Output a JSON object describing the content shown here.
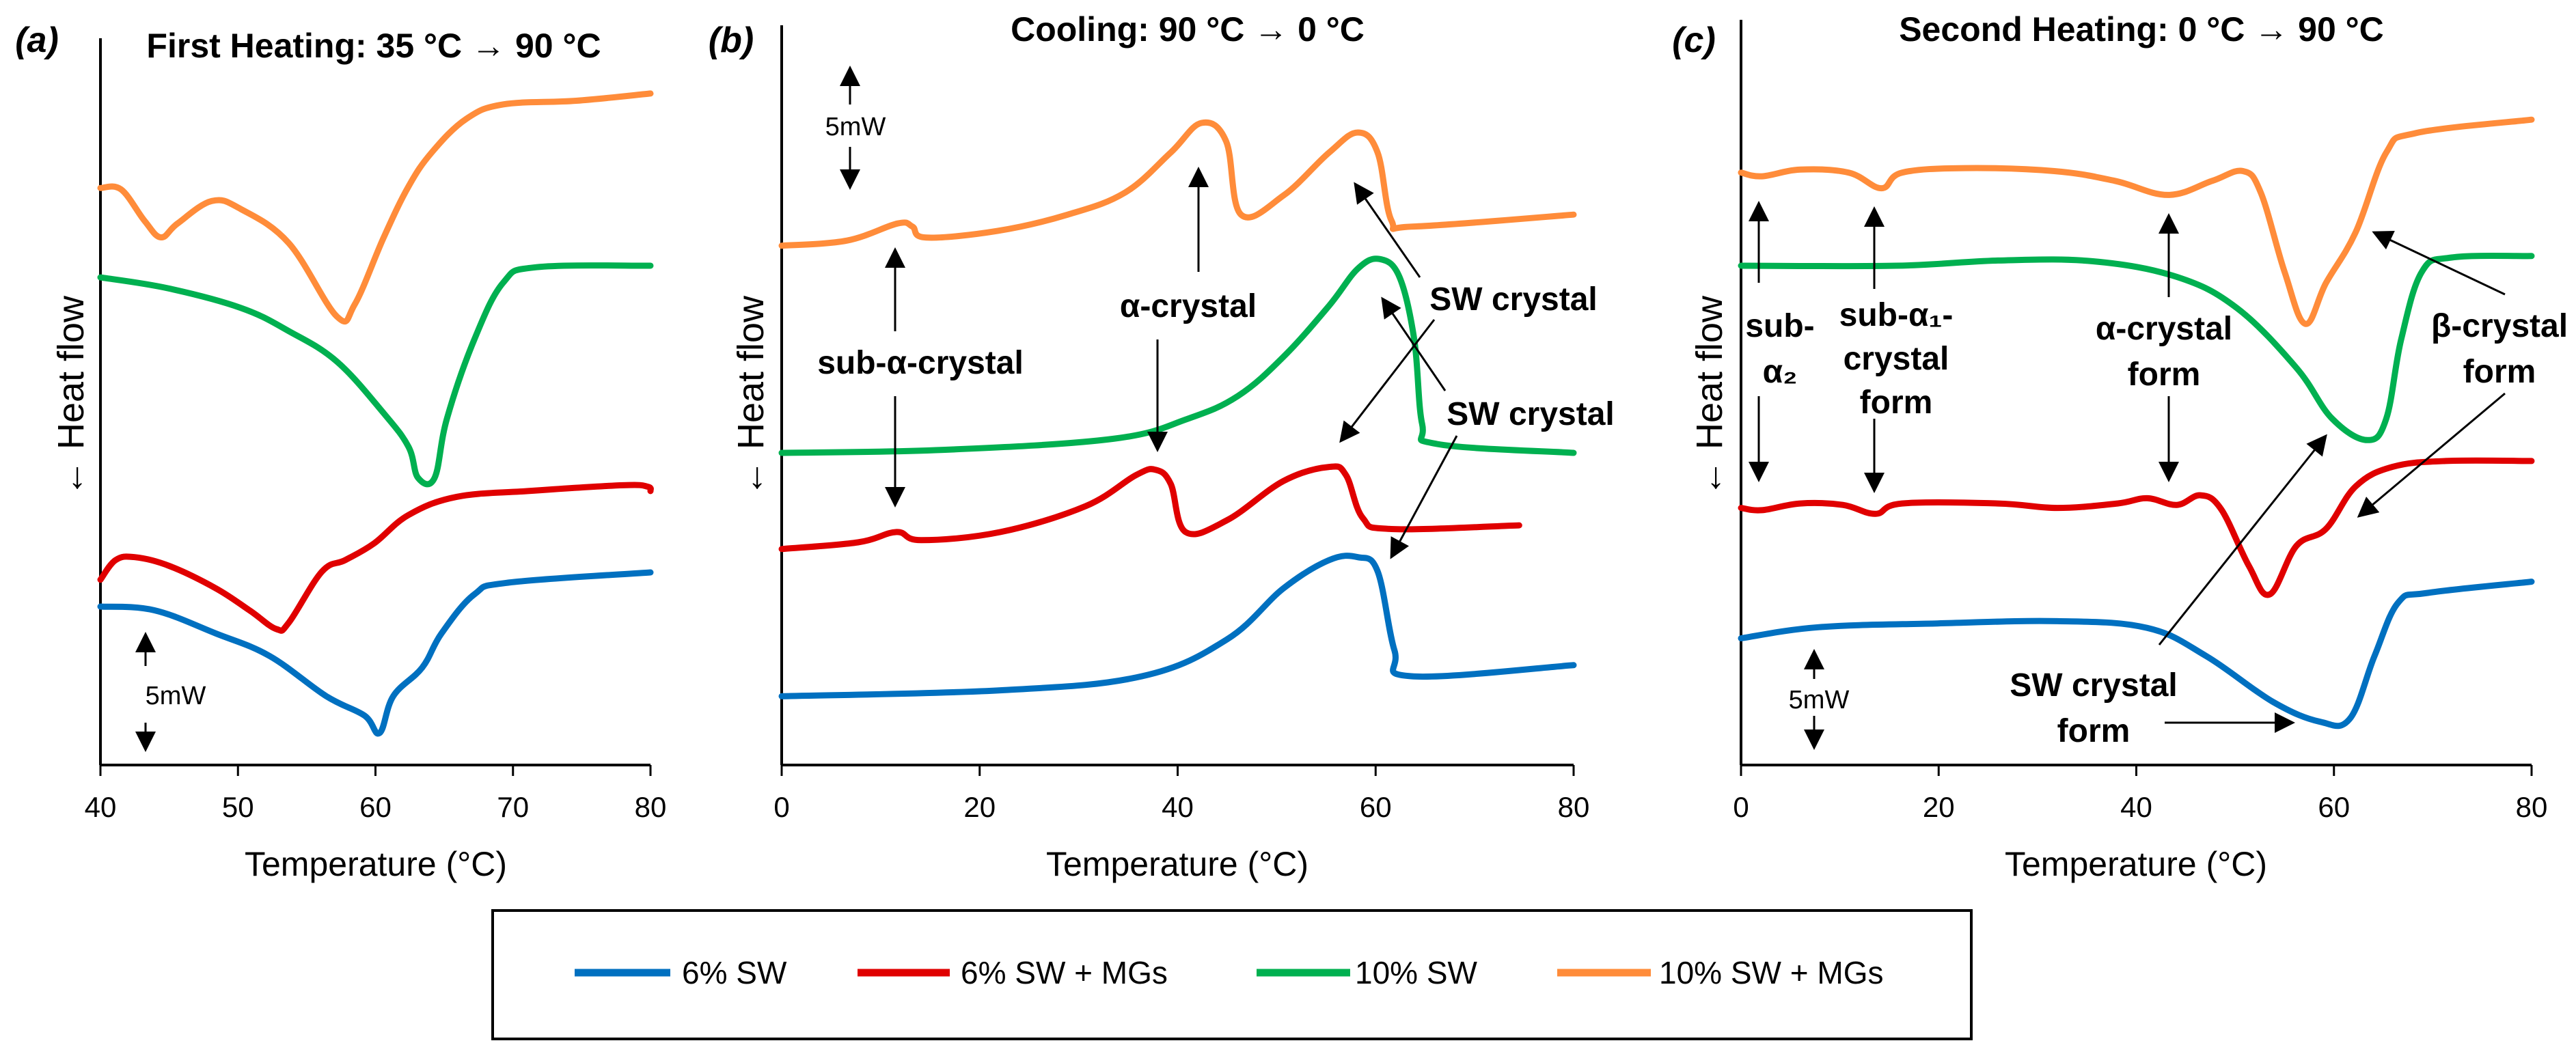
{
  "colors": {
    "6% SW": "#0070C0",
    "6% SW + MGs": "#E00000",
    "10% SW": "#00B050",
    "10% SW + MGs": "#FF8C3A"
  },
  "legend": [
    "6% SW",
    "6% SW + MGs",
    "10% SW",
    "10% SW + MGs"
  ],
  "chart_data": [
    {
      "type": "line",
      "panel_label": "(a)",
      "title": "First Heating: 35 °C → 90 °C",
      "xlabel": "Temperature (°C)",
      "ylabel": "← Heat flow",
      "xlim": [
        40,
        80
      ],
      "ylim": [
        0,
        100
      ],
      "xticks": [
        "40",
        "50",
        "60",
        "70",
        "80"
      ],
      "scale_bar": "5mW",
      "grid": false,
      "annotations": [],
      "series": [
        {
          "name": "10% SW + MGs",
          "x": [
            40,
            41.5,
            43.2,
            44.4,
            45.6,
            48.1,
            50.2,
            53.7,
            57.2,
            58.5,
            60.6,
            62.4,
            64.1,
            66.6,
            69.3,
            74.6,
            80
          ],
          "y": [
            79.4,
            79.2,
            74.9,
            72.6,
            74.5,
            77.6,
            76.5,
            71.8,
            61.7,
            63.4,
            72.6,
            79.6,
            84.3,
            88.9,
            90.9,
            91.4,
            92.4
          ]
        },
        {
          "name": "10% SW",
          "x": [
            40,
            44.9,
            50.2,
            53.7,
            57.2,
            60.6,
            62.4,
            63.1,
            64.3,
            65.2,
            67.2,
            69.3,
            71.7,
            80
          ],
          "y": [
            67.1,
            65.6,
            62.9,
            59.7,
            55.5,
            48.4,
            43.8,
            39.5,
            39.5,
            47.7,
            58.6,
            66.4,
            68.5,
            68.7
          ]
        },
        {
          "name": "6% SW + MGs",
          "x": [
            40,
            41.1,
            42.5,
            45,
            48.4,
            50.9,
            52.8,
            53.7,
            56.1,
            57.8,
            59.9,
            62.4,
            65.9,
            71.1,
            78,
            79.8,
            80
          ],
          "y": [
            25.5,
            28.2,
            28.6,
            27.4,
            24.3,
            21.2,
            18.7,
            19.6,
            26.6,
            28.2,
            30.5,
            34.4,
            36.9,
            37.7,
            38.5,
            38.3,
            37.7
          ]
        },
        {
          "name": "6% SW",
          "x": [
            40,
            43.9,
            48.4,
            52.3,
            56.4,
            59.2,
            60.3,
            61.3,
            63.4,
            64.8,
            67.2,
            69.7,
            80
          ],
          "y": [
            21.8,
            21.3,
            18.1,
            15,
            9.5,
            6.8,
            4.4,
            9.5,
            13.4,
            18.1,
            23.5,
            25.1,
            26.5
          ]
        }
      ]
    },
    {
      "type": "line",
      "panel_label": "(b)",
      "title": "Cooling: 90 °C → 0 °C",
      "xlabel": "Temperature (°C)",
      "ylabel": "← Heat flow",
      "xlim": [
        0,
        80
      ],
      "ylim": [
        0,
        100
      ],
      "xticks": [
        "0",
        "20",
        "40",
        "60",
        "80"
      ],
      "scale_bar": "5mW",
      "grid": false,
      "annotations": [
        "sub-α-crystal",
        "α-crystal",
        "SW crystal",
        "SW crystal"
      ],
      "series": [
        {
          "name": "10% SW + MGs",
          "x": [
            0,
            6.6,
            11.7,
            13.2,
            14.6,
            21.8,
            28.9,
            34.7,
            39.3,
            42.4,
            44.9,
            46.4,
            50.7,
            55.3,
            58.2,
            60.2,
            61.6,
            63.9,
            80
          ],
          "y": [
            70.2,
            70.9,
            73.2,
            72.8,
            71.3,
            72.2,
            74.4,
            77.4,
            82.8,
            86.8,
            84.3,
            74.4,
            77,
            82.8,
            85.5,
            82.8,
            73.6,
            72.8,
            74.4
          ]
        },
        {
          "name": "10% SW",
          "x": [
            0,
            16.3,
            33.5,
            41,
            46.1,
            50.7,
            55.3,
            58.2,
            60.4,
            62.4,
            63.9,
            64.7,
            66.2,
            80
          ],
          "y": [
            42.2,
            42.6,
            44.1,
            46.8,
            49.9,
            55.2,
            62.1,
            67.1,
            68.4,
            66,
            57.5,
            46.1,
            43.4,
            42.2
          ]
        },
        {
          "name": "6% SW + MGs",
          "x": [
            0,
            7.7,
            11.6,
            14.1,
            22.1,
            30.7,
            35.8,
            37.8,
            39.3,
            40.8,
            45,
            50.7,
            55.3,
            57,
            58.7,
            61.6,
            74.5
          ],
          "y": [
            29.2,
            30.1,
            31.5,
            30.4,
            31.5,
            35,
            39.2,
            39.9,
            38,
            31.5,
            33.1,
            38.4,
            40.3,
            39.2,
            33.4,
            31.9,
            32.4
          ]
        },
        {
          "name": "6% SW",
          "x": [
            0,
            22.1,
            36.4,
            45,
            50.7,
            55.3,
            58.2,
            60.2,
            61.9,
            63.6,
            80
          ],
          "y": [
            9.3,
            10.1,
            12,
            17,
            23.9,
            27.7,
            28.1,
            26.2,
            15.5,
            12,
            13.5
          ]
        }
      ]
    },
    {
      "type": "line",
      "panel_label": "(c)",
      "title": "Second Heating: 0 °C → 90 °C",
      "xlabel": "Temperature (°C)",
      "ylabel": "← Heat flow",
      "xlim": [
        0,
        80
      ],
      "ylim": [
        0,
        100
      ],
      "xticks": [
        "0",
        "20",
        "40",
        "60",
        "80"
      ],
      "scale_bar": "5mW",
      "grid": false,
      "annotations": [
        [
          "sub-",
          "α₂"
        ],
        [
          "sub-α₁-",
          "crystal",
          "form"
        ],
        [
          "α-crystal",
          "form"
        ],
        [
          "β-crystal",
          "form"
        ],
        [
          "SW crystal",
          "form"
        ]
      ],
      "series": [
        {
          "name": "10% SW + MGs",
          "x": [
            0,
            2.1,
            6,
            10.9,
            14.2,
            16.3,
            22.7,
            31.7,
            37.8,
            43.2,
            47.7,
            50.8,
            52.6,
            55,
            57.1,
            59.2,
            62.2,
            65.3,
            68.3,
            80
          ],
          "y": [
            79.5,
            79,
            79.9,
            79.5,
            77.4,
            79.5,
            80.1,
            79.7,
            78.4,
            76.5,
            78.4,
            79.7,
            76.8,
            66.2,
            59.2,
            64.7,
            71.5,
            82.2,
            84.8,
            86.6
          ]
        },
        {
          "name": "10% SW",
          "x": [
            0,
            15.7,
            26,
            35.6,
            44.1,
            50.2,
            56.2,
            59.8,
            63.4,
            65.3,
            66.8,
            68.9,
            71.9,
            80
          ],
          "y": [
            67,
            67,
            67.7,
            67.6,
            65.5,
            61.3,
            53.3,
            46.5,
            43.6,
            46.5,
            57.1,
            66.2,
            68.1,
            68.3
          ]
        },
        {
          "name": "6% SW + MGs",
          "x": [
            0,
            2.1,
            6,
            10.3,
            13.6,
            16.3,
            26,
            32,
            38.1,
            41.1,
            44.1,
            46.5,
            48.6,
            51.4,
            53.5,
            56.2,
            59.2,
            62.2,
            65.9,
            71.3,
            80
          ],
          "y": [
            34.5,
            34.2,
            35.1,
            34.9,
            33.7,
            35.1,
            35.1,
            34.5,
            35.1,
            35.8,
            34.9,
            36.2,
            34.3,
            26.7,
            22.9,
            29.4,
            31.7,
            37.4,
            40,
            40.8,
            40.8
          ]
        },
        {
          "name": "6% SW",
          "x": [
            0,
            7.9,
            19.9,
            32,
            41.1,
            47.1,
            53.8,
            58.6,
            61.6,
            64.1,
            66.5,
            69.5,
            80
          ],
          "y": [
            17,
            18.5,
            19,
            19.3,
            18.4,
            14.6,
            8.5,
            5.8,
            6.2,
            14.6,
            21.8,
            23.1,
            24.6
          ]
        }
      ]
    }
  ]
}
